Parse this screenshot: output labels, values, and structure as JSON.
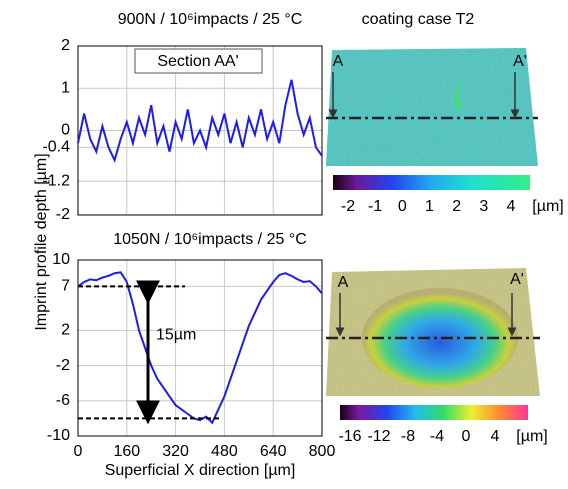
{
  "chart_data": [
    {
      "type": "line",
      "title": "900N / 10⁶impacts / 25 °C",
      "xlim": [
        0,
        800
      ],
      "ylim": [
        -2,
        2
      ],
      "yticks": [
        2,
        1,
        0,
        -0.4,
        -1.2,
        -2
      ],
      "grid": true,
      "series": [
        {
          "name": "Section AA'",
          "color": "#1c1cf0",
          "x": [
            0,
            20,
            40,
            60,
            80,
            100,
            120,
            140,
            160,
            180,
            200,
            220,
            240,
            260,
            280,
            300,
            320,
            340,
            360,
            380,
            400,
            420,
            440,
            460,
            480,
            500,
            520,
            540,
            560,
            580,
            600,
            620,
            640,
            660,
            680,
            700,
            720,
            740,
            760,
            780,
            800
          ],
          "values": [
            -0.3,
            0.4,
            -0.2,
            -0.5,
            0.1,
            -0.4,
            -0.7,
            -0.2,
            0.2,
            -0.3,
            0.3,
            -0.1,
            0.6,
            -0.3,
            0.1,
            -0.5,
            0.2,
            -0.2,
            0.5,
            -0.3,
            0.0,
            -0.4,
            0.3,
            -0.1,
            0.4,
            -0.3,
            0.2,
            -0.4,
            0.3,
            -0.1,
            0.5,
            -0.2,
            0.2,
            -0.3,
            0.6,
            1.2,
            0.4,
            -0.1,
            0.3,
            -0.4,
            -0.6
          ]
        }
      ]
    },
    {
      "type": "line",
      "title": "1050N / 10⁶impacts / 25 °C",
      "xlim": [
        0,
        800
      ],
      "xticks": [
        0,
        160,
        320,
        480,
        640,
        800
      ],
      "ylim": [
        -10,
        10
      ],
      "yticks": [
        10,
        7,
        2,
        -2,
        -6,
        -10
      ],
      "grid": true,
      "reference_lines": [
        7,
        -8
      ],
      "annotation": "15µm",
      "series": [
        {
          "color": "#1c1cf0",
          "x": [
            0,
            20,
            40,
            60,
            80,
            100,
            120,
            140,
            160,
            180,
            200,
            220,
            240,
            260,
            280,
            300,
            320,
            340,
            360,
            380,
            400,
            420,
            440,
            460,
            480,
            500,
            520,
            540,
            560,
            580,
            600,
            620,
            640,
            660,
            680,
            700,
            720,
            740,
            760,
            780,
            800
          ],
          "values": [
            7,
            7.5,
            7.8,
            7.7,
            8,
            8.2,
            8.5,
            8.6,
            7.5,
            5,
            2,
            0,
            -2,
            -3.5,
            -4.5,
            -5.5,
            -6.5,
            -7,
            -7.5,
            -8,
            -8.2,
            -7.8,
            -8.5,
            -7,
            -5.5,
            -3.5,
            -1.5,
            0.5,
            2.5,
            4,
            5.5,
            6.5,
            7.5,
            8.3,
            8.5,
            8.2,
            7.8,
            7.5,
            7.6,
            7,
            6.2
          ]
        }
      ]
    }
  ],
  "y_axis_label": "Imprint profile depth [µm]",
  "x_axis_label": "Superficial X direction [µm]",
  "surfaces": [
    {
      "title": "coating case T2",
      "section_labels": [
        "A",
        "A'"
      ],
      "colorbar_ticks": [
        -2,
        -1,
        0,
        1,
        2,
        3,
        4
      ],
      "colorbar_unit": "[µm]"
    },
    {
      "section_labels": [
        "A",
        "A'"
      ],
      "colorbar_ticks": [
        -16,
        -12,
        -8,
        -4,
        0,
        4
      ],
      "colorbar_unit": "[µm]"
    }
  ]
}
